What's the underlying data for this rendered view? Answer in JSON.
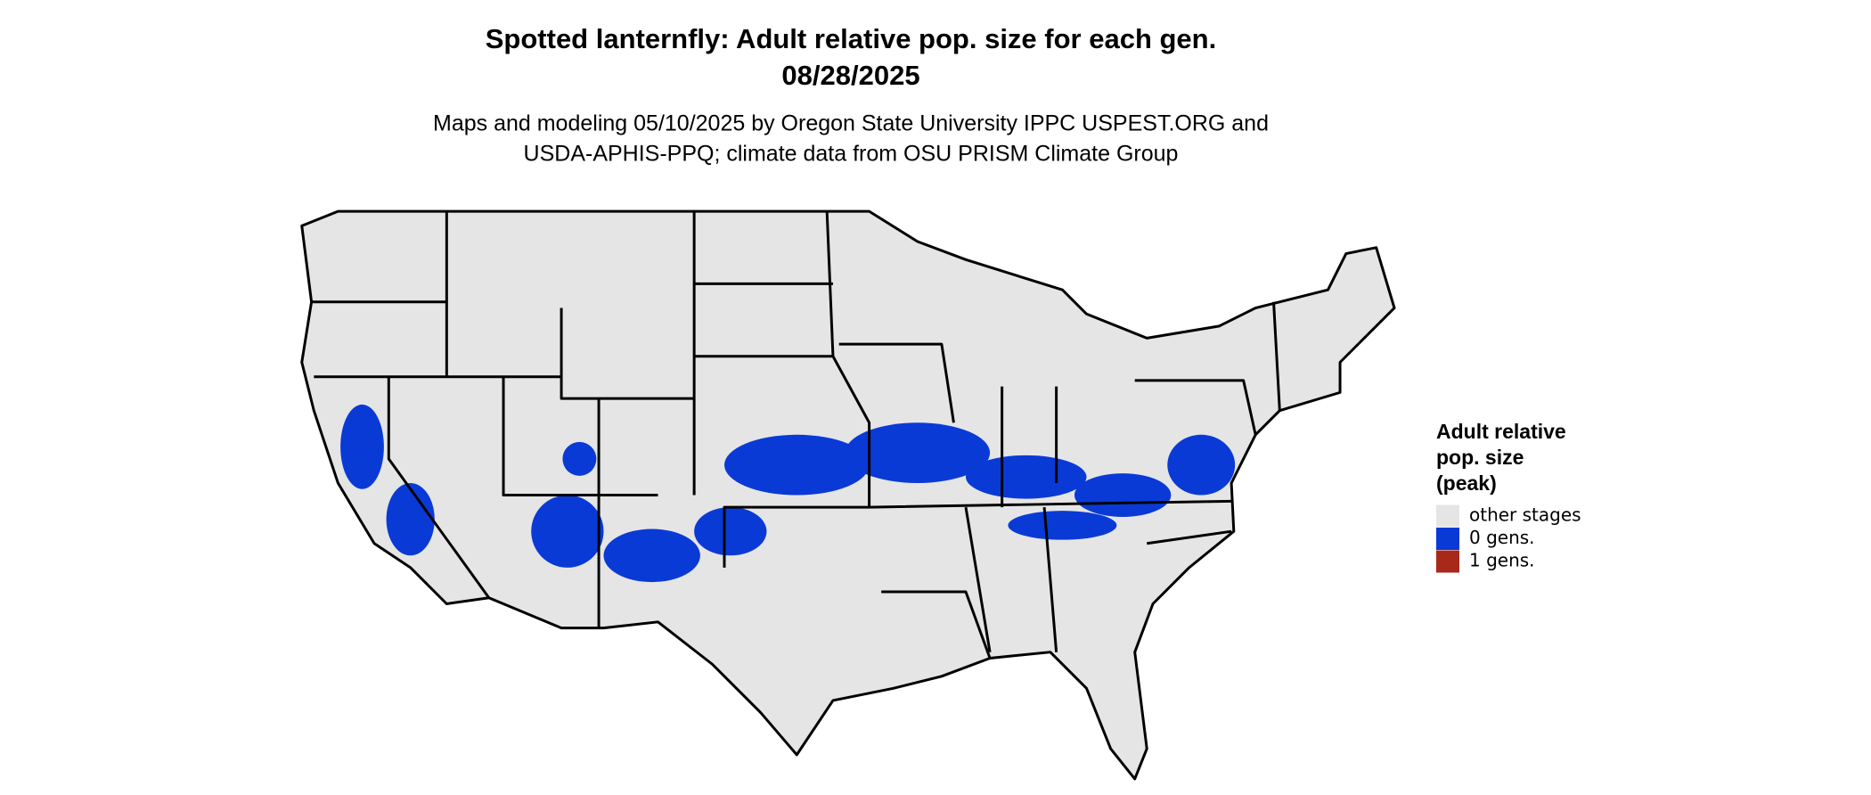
{
  "header": {
    "title": [
      "Spotted lanternfly: Adult relative pop. size for each gen.",
      "08/28/2025"
    ],
    "subtitle": [
      "Maps and modeling 05/10/2025 by Oregon State University IPPC USPEST.ORG and",
      "USDA-APHIS-PPQ; climate data from OSU PRISM Climate Group"
    ]
  },
  "legend": {
    "title": [
      "Adult relative",
      "pop. size",
      "(peak)"
    ],
    "items": [
      {
        "label": "other stages",
        "color": "#e5e5e5"
      },
      {
        "label": "0 gens.",
        "color": "#0a3ad6"
      },
      {
        "label": "1 gens.",
        "color": "#a8281a"
      }
    ]
  }
}
